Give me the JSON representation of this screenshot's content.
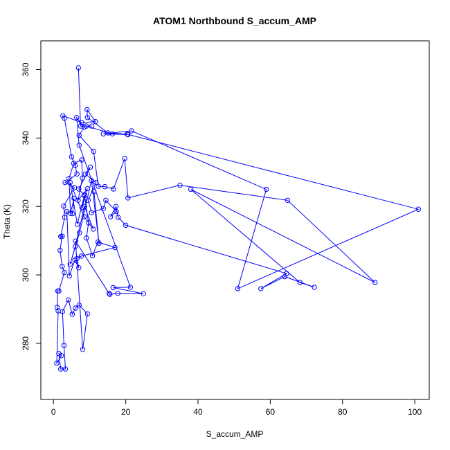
{
  "chart_data": {
    "type": "line",
    "title": "ATOM1 Northbound S_accum_AMP",
    "xlabel": "S_accum_AMP",
    "ylabel": "Theta (K)",
    "xlim": [
      -3.5,
      104
    ],
    "ylim": [
      263.6,
      368.4
    ],
    "xticks": [
      0,
      20,
      40,
      60,
      80,
      100
    ],
    "yticks": [
      280,
      300,
      320,
      340,
      360
    ],
    "grid": false,
    "markers": "open-circle",
    "color": "#0000ff",
    "series": [
      {
        "points": [
          [
            6.9,
            360.5
          ],
          [
            7.5,
            343.5
          ],
          [
            10.6,
            343.5
          ],
          [
            9.1,
            343.5
          ],
          [
            16.3,
            341.2
          ],
          [
            20.6,
            341.0
          ],
          [
            13.8,
            341.2
          ],
          [
            21.6,
            342.1
          ],
          [
            58.9,
            325.0
          ],
          [
            51.0,
            296.0
          ],
          [
            101.0,
            319.2
          ],
          [
            20.4,
            341.1
          ],
          [
            15.1,
            341.5
          ],
          [
            9.4,
            346.0
          ],
          [
            9.3,
            348.3
          ],
          [
            11.6,
            344.8
          ],
          [
            7.8,
            344.5
          ],
          [
            2.6,
            346.5
          ],
          [
            3.0,
            345.8
          ],
          [
            5.0,
            334.5
          ],
          [
            6.0,
            332.0
          ],
          [
            6.5,
            329.5
          ],
          [
            3.2,
            327.0
          ],
          [
            5.8,
            325.5
          ],
          [
            2.8,
            320.1
          ],
          [
            3.1,
            316.8
          ],
          [
            2.0,
            311.2
          ],
          [
            2.4,
            311.3
          ],
          [
            1.8,
            307.2
          ],
          [
            2.4,
            302.5
          ],
          [
            3.0,
            300.7
          ],
          [
            1.5,
            295.3
          ],
          [
            1.2,
            295.3
          ],
          [
            1.0,
            290.5
          ],
          [
            1.3,
            289.5
          ],
          [
            0.9,
            274.2
          ],
          [
            2.2,
            276.4
          ],
          [
            1.5,
            277.0
          ],
          [
            2.0,
            272.5
          ],
          [
            3.3,
            272.5
          ],
          [
            2.9,
            279.4
          ],
          [
            2.5,
            289.3
          ],
          [
            4.1,
            292.7
          ],
          [
            5.2,
            288.5
          ],
          [
            6.1,
            290.3
          ],
          [
            7.1,
            291.2
          ],
          [
            9.4,
            288.6
          ],
          [
            8.1,
            278.2
          ],
          [
            6.1,
            309.9
          ],
          [
            15.4,
            294.6
          ],
          [
            15.6,
            294.3
          ],
          [
            17.8,
            294.6
          ],
          [
            24.9,
            294.5
          ],
          [
            16.5,
            296.3
          ],
          [
            21.3,
            296.4
          ],
          [
            7.1,
            337.9
          ],
          [
            6.4,
            346.0
          ],
          [
            8.5,
            343.2
          ],
          [
            7.1,
            340.8
          ],
          [
            11.1,
            336.1
          ],
          [
            12.4,
            325.9
          ],
          [
            14.2,
            325.8
          ],
          [
            16.6,
            325.1
          ],
          [
            19.7,
            334.0
          ],
          [
            20.6,
            322.5
          ],
          [
            35.0,
            326.2
          ],
          [
            64.8,
            321.8
          ],
          [
            89.0,
            297.8
          ],
          [
            38.0,
            325.0
          ],
          [
            68.2,
            297.8
          ],
          [
            72.2,
            296.4
          ],
          [
            64.0,
            299.5
          ],
          [
            57.4,
            296.0
          ],
          [
            64.5,
            300.4
          ],
          [
            20.0,
            314.5
          ],
          [
            17.9,
            316.8
          ],
          [
            17.3,
            320.0
          ],
          [
            15.8,
            317.0
          ],
          [
            17.4,
            318.5
          ],
          [
            14.5,
            321.8
          ],
          [
            13.8,
            319.4
          ],
          [
            10.5,
            318.2
          ],
          [
            9.6,
            321.8
          ],
          [
            11.8,
            327.0
          ],
          [
            8.8,
            329.5
          ],
          [
            10.2,
            331.5
          ],
          [
            7.0,
            325.1
          ],
          [
            8.6,
            323.2
          ],
          [
            9.7,
            315.2
          ],
          [
            9.1,
            310.8
          ],
          [
            10.8,
            305.6
          ],
          [
            12.3,
            309.6
          ],
          [
            17.0,
            308.0
          ],
          [
            7.7,
            305.5
          ],
          [
            6.5,
            304.8
          ],
          [
            7.0,
            302.1
          ],
          [
            5.9,
            304.3
          ],
          [
            4.4,
            299.7
          ],
          [
            3.7,
            318.5
          ],
          [
            5.3,
            317.9
          ],
          [
            5.7,
            322.4
          ],
          [
            4.7,
            318.0
          ],
          [
            4.3,
            328.2
          ],
          [
            5.6,
            332.6
          ],
          [
            7.8,
            333.6
          ],
          [
            8.0,
            328.3
          ],
          [
            6.8,
            321.8
          ],
          [
            9.4,
            325.2
          ],
          [
            7.9,
            319.7
          ],
          [
            8.6,
            323.4
          ],
          [
            6.6,
            314.8
          ],
          [
            4.6,
            327.0
          ],
          [
            8.5,
            317.0
          ],
          [
            11.0,
            313.4
          ],
          [
            8.6,
            320.0
          ],
          [
            6.0,
            308.3
          ],
          [
            4.6,
            303.1
          ],
          [
            7.2,
            312.3
          ],
          [
            10.5,
            327.6
          ],
          [
            12.6,
            309.2
          ],
          [
            11.2,
            324.4
          ]
        ]
      }
    ]
  }
}
